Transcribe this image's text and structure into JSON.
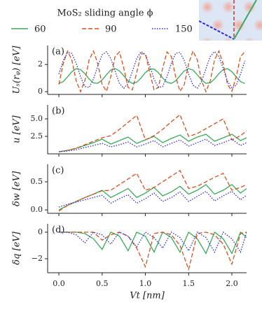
{
  "chart_data": [
    {
      "type": "line",
      "legend_title": "MoS₂ sliding angle ϕ",
      "panel_label": "(a)",
      "y_label": "Uₛ(rᵩ) [eV]",
      "x": [
        0,
        0.05,
        0.1,
        0.15,
        0.2,
        0.25,
        0.3,
        0.35,
        0.4,
        0.45,
        0.5,
        0.55,
        0.6,
        0.65,
        0.7,
        0.75,
        0.8,
        0.85,
        0.9,
        0.95,
        1,
        1.05,
        1.1,
        1.15,
        1.2,
        1.25,
        1.3,
        1.35,
        1.4,
        1.45,
        1.5,
        1.55,
        1.6,
        1.65,
        1.7,
        1.75,
        1.8,
        1.85,
        1.9,
        1.95,
        2,
        2.05,
        2.1,
        2.15
      ],
      "xlim": [
        -0.13,
        2.17
      ],
      "xticks": [
        0,
        0.5,
        1,
        1.5,
        2
      ],
      "ylim": [
        -0.2,
        3.4
      ],
      "yticks": [
        0,
        2
      ],
      "series": [
        {
          "name": "60",
          "color": "#3aaa5c",
          "linestyle": "solid",
          "values": [
            0.6,
            0.74,
            1.09,
            1.47,
            1.69,
            1.63,
            1.33,
            0.93,
            0.65,
            0.62,
            0.86,
            1.25,
            1.59,
            1.7,
            1.53,
            1.17,
            0.8,
            0.61,
            0.69,
            1.01,
            1.4,
            1.66,
            1.66,
            1.4,
            1.01,
            0.69,
            0.61,
            0.8,
            1.17,
            1.53,
            1.7,
            1.59,
            1.25,
            0.86,
            0.62,
            0.65,
            0.94,
            1.33,
            1.63,
            1.69,
            1.47,
            1.09,
            0.74,
            0.6
          ]
        },
        {
          "name": "90",
          "color": "#d4521f",
          "linestyle": "dashed",
          "values": [
            0.53,
            2.06,
            2.99,
            2.34,
            0.8,
            0.0,
            0.8,
            2.34,
            2.99,
            2.05,
            0.53,
            0.03,
            1.1,
            2.59,
            2.92,
            1.74,
            0.31,
            0.14,
            1.42,
            2.79,
            2.79,
            1.42,
            0.14,
            0.31,
            1.74,
            2.92,
            2.59,
            1.1,
            0.03,
            0.53,
            2.06,
            2.99,
            2.34,
            0.8,
            0.0,
            0.8,
            2.34,
            2.99,
            2.05,
            0.53,
            0.03,
            1.1,
            2.59,
            2.92
          ]
        },
        {
          "name": "150",
          "color": "#2b2bd6",
          "linestyle": "dotted",
          "values": [
            1.3,
            2.28,
            2.89,
            2.82,
            2.09,
            1.11,
            0.38,
            0.31,
            0.93,
            1.9,
            2.72,
            2.94,
            2.44,
            1.5,
            0.61,
            0.25,
            0.61,
            1.5,
            2.44,
            2.94,
            2.72,
            1.9,
            0.93,
            0.31,
            0.38,
            1.11,
            2.09,
            2.82,
            2.89,
            2.28,
            1.3,
            0.48,
            0.26,
            0.76,
            1.7,
            2.59,
            2.95,
            2.59,
            1.7,
            0.76,
            0.26,
            0.48,
            1.3,
            2.28
          ]
        }
      ]
    },
    {
      "type": "line",
      "panel_label": "(b)",
      "y_label": "u [eV]",
      "x": [
        0,
        0.1,
        0.2,
        0.3,
        0.4,
        0.5,
        0.6,
        0.7,
        0.8,
        0.9,
        1,
        1.1,
        1.2,
        1.3,
        1.4,
        1.5,
        1.6,
        1.7,
        1.8,
        1.9,
        2,
        2.1,
        2.17
      ],
      "xlim": [
        -0.13,
        2.17
      ],
      "xticks": [
        0,
        0.5,
        1,
        1.5,
        2
      ],
      "ylim": [
        0,
        7
      ],
      "yticks": [
        2.5,
        {
          "value": 5,
          "label": "5.0"
        }
      ],
      "series": [
        {
          "color": "#3aaa5c",
          "linestyle": "solid",
          "values": [
            0.3,
            0.5,
            0.8,
            1.2,
            1.6,
            2.1,
            1.4,
            1.9,
            2.4,
            1.5,
            2.0,
            2.5,
            1.6,
            2.2,
            2.7,
            1.8,
            2.4,
            2.8,
            1.8,
            2.3,
            2.8,
            1.9,
            2.3
          ]
        },
        {
          "color": "#d4521f",
          "linestyle": "dashed",
          "values": [
            0.3,
            0.5,
            0.8,
            1.3,
            1.8,
            2.3,
            2.6,
            3.5,
            4.5,
            5.5,
            2.0,
            2.6,
            3.5,
            4.6,
            5.6,
            2.5,
            2.9,
            3.6,
            4.3,
            5.0,
            2.0,
            2.6,
            3.3
          ]
        },
        {
          "color": "#2b2bd6",
          "linestyle": "dotted",
          "values": [
            0.3,
            0.4,
            0.6,
            0.9,
            1.2,
            1.5,
            1.0,
            1.3,
            1.7,
            1.0,
            1.4,
            1.9,
            1.0,
            1.5,
            2.0,
            1.1,
            1.6,
            2.1,
            1.2,
            1.6,
            2.1,
            1.2,
            1.6
          ]
        }
      ]
    },
    {
      "type": "line",
      "panel_label": "(c)",
      "y_label": "δw [eV]",
      "x": [
        0,
        0.1,
        0.2,
        0.3,
        0.4,
        0.5,
        0.6,
        0.7,
        0.8,
        0.9,
        1,
        1.1,
        1.2,
        1.3,
        1.4,
        1.5,
        1.6,
        1.7,
        1.8,
        1.9,
        2,
        2.1,
        2.17
      ],
      "xlim": [
        -0.13,
        2.17
      ],
      "xticks": [
        0,
        0.5,
        1,
        1.5,
        2
      ],
      "ylim": [
        -0.06,
        0.81
      ],
      "yticks": [
        {
          "value": 0,
          "label": "0.0"
        },
        0.5
      ],
      "series": [
        {
          "color": "#3aaa5c",
          "linestyle": "solid",
          "values": [
            0.0,
            0.08,
            0.15,
            0.22,
            0.28,
            0.35,
            0.22,
            0.3,
            0.38,
            0.22,
            0.3,
            0.4,
            0.25,
            0.32,
            0.42,
            0.28,
            0.35,
            0.45,
            0.28,
            0.35,
            0.45,
            0.3,
            0.38
          ]
        },
        {
          "color": "#d4521f",
          "linestyle": "dashed",
          "values": [
            -0.02,
            0.08,
            0.15,
            0.22,
            0.28,
            0.34,
            0.35,
            0.45,
            0.55,
            0.65,
            0.35,
            0.4,
            0.5,
            0.6,
            0.7,
            0.38,
            0.42,
            0.5,
            0.58,
            0.65,
            0.35,
            0.4,
            0.45
          ]
        },
        {
          "color": "#2b2bd6",
          "linestyle": "dotted",
          "values": [
            0.05,
            0.1,
            0.14,
            0.18,
            0.22,
            0.26,
            0.12,
            0.2,
            0.27,
            0.12,
            0.2,
            0.3,
            0.15,
            0.22,
            0.32,
            0.15,
            0.24,
            0.33,
            0.16,
            0.25,
            0.33,
            0.18,
            0.26
          ]
        }
      ]
    },
    {
      "type": "line",
      "panel_label": "(d)",
      "y_label": "δq [eV]",
      "x_label": "Vt [nm]",
      "x": [
        0,
        0.1,
        0.2,
        0.3,
        0.4,
        0.5,
        0.6,
        0.7,
        0.8,
        0.9,
        1,
        1.1,
        1.2,
        1.3,
        1.4,
        1.5,
        1.6,
        1.7,
        1.8,
        1.9,
        2,
        2.1,
        2.17
      ],
      "xlim": [
        -0.13,
        2.17
      ],
      "xticks": [
        {
          "value": 0,
          "label": "0.0"
        },
        {
          "value": 0.5,
          "label": "0.5"
        },
        {
          "value": 1,
          "label": "1.0"
        },
        {
          "value": 1.5,
          "label": "1.5"
        },
        {
          "value": 2,
          "label": "2.0"
        }
      ],
      "ylim": [
        -3.05,
        0.63
      ],
      "yticks": [
        {
          "value": -2,
          "label": "−2"
        },
        0
      ],
      "series": [
        {
          "color": "#3aaa5c",
          "linestyle": "solid",
          "values": [
            0,
            0,
            0,
            -0.1,
            -0.5,
            -1.3,
            0,
            -0.3,
            -1.4,
            0,
            -0.3,
            -1.5,
            0,
            -0.4,
            -1.5,
            0,
            -0.5,
            -1.6,
            0,
            -0.5,
            -1.6,
            0,
            -0.4
          ]
        },
        {
          "color": "#d4521f",
          "linestyle": "dashed",
          "values": [
            0,
            0,
            0,
            0,
            0,
            -0.6,
            -0.2,
            0,
            -0.3,
            -1.2,
            -2.6,
            -0.1,
            0,
            -0.2,
            -1.0,
            -2.8,
            -0.1,
            0,
            -0.2,
            -0.9,
            -2.4,
            -0.1,
            0
          ]
        },
        {
          "color": "#2b2bd6",
          "linestyle": "dotted",
          "values": [
            0,
            0,
            -0.2,
            -0.8,
            0,
            -0.2,
            -0.9,
            0,
            -0.3,
            -1.1,
            0,
            -0.4,
            -1.2,
            0,
            -0.4,
            -1.4,
            0,
            -0.4,
            -1.5,
            0,
            -0.5,
            -1.5,
            0
          ]
        }
      ]
    }
  ]
}
